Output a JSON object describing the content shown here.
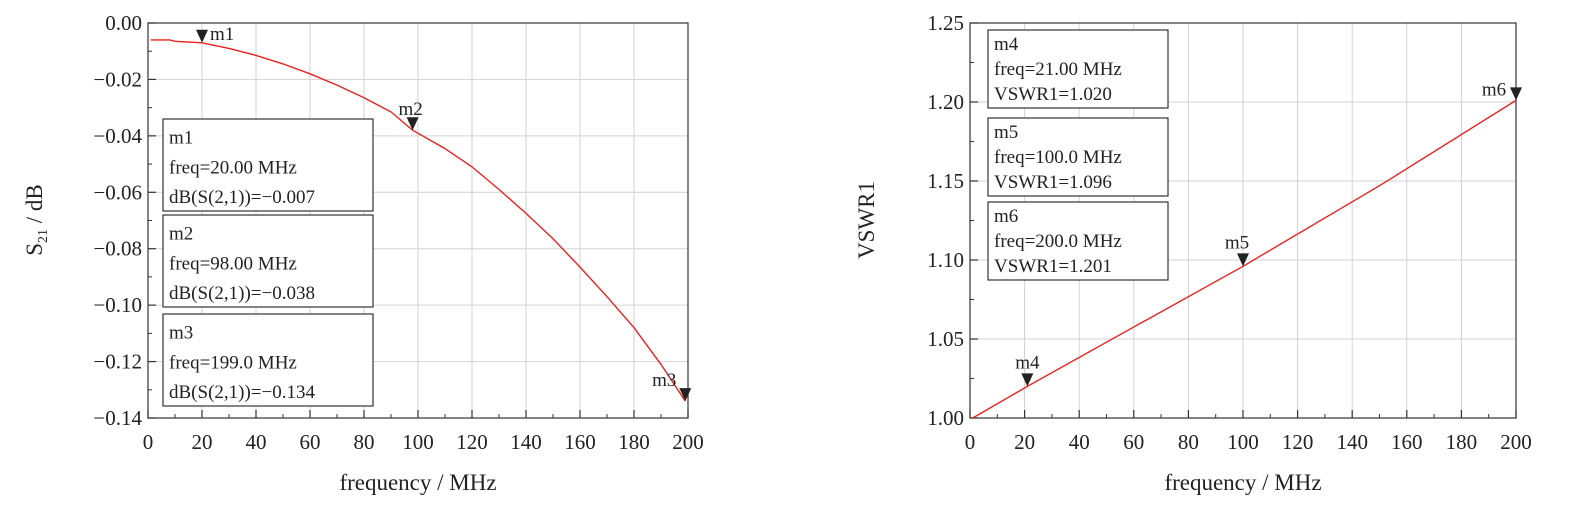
{
  "chart_data": [
    {
      "type": "line",
      "xlabel": "frequency / MHz",
      "ylabel_main": "S",
      "ylabel_sub": "21",
      "ylabel_rest": " / dB",
      "xlim": [
        0,
        200
      ],
      "ylim": [
        -0.14,
        0.0
      ],
      "x_ticks": [
        "0",
        "20",
        "40",
        "60",
        "80",
        "100",
        "120",
        "140",
        "160",
        "180",
        "200"
      ],
      "y_ticks": [
        "0.00",
        "−0.02",
        "−0.04",
        "−0.06",
        "−0.08",
        "−0.10",
        "−0.12",
        "−0.14"
      ],
      "grid": true,
      "line_color": "#e8231f",
      "series": [
        {
          "x": [
            1,
            8,
            10,
            20,
            30,
            40,
            50,
            60,
            70,
            80,
            90,
            98,
            110,
            120,
            130,
            140,
            150,
            160,
            170,
            180,
            190,
            199
          ],
          "values": [
            -0.006,
            -0.006,
            -0.0065,
            -0.007,
            -0.009,
            -0.0115,
            -0.0145,
            -0.018,
            -0.022,
            -0.0265,
            -0.0315,
            -0.038,
            -0.0445,
            -0.051,
            -0.059,
            -0.0675,
            -0.0765,
            -0.0865,
            -0.097,
            -0.108,
            -0.121,
            -0.134
          ]
        }
      ],
      "markers": [
        {
          "name": "m1",
          "x": 20,
          "y": -0.007,
          "freq": "freq=20.00 MHz",
          "value": "dB(S(2,1))=−0.007"
        },
        {
          "name": "m2",
          "x": 98,
          "y": -0.038,
          "freq": "freq=98.00 MHz",
          "value": "dB(S(2,1))=−0.038"
        },
        {
          "name": "m3",
          "x": 199,
          "y": -0.134,
          "freq": "freq=199.0 MHz",
          "value": "dB(S(2,1))=−0.134"
        }
      ]
    },
    {
      "type": "line",
      "xlabel": "frequency / MHz",
      "ylabel_main": "VSWR1",
      "ylabel_sub": "",
      "ylabel_rest": "",
      "xlim": [
        0,
        200
      ],
      "ylim": [
        1.0,
        1.25
      ],
      "x_ticks": [
        "0",
        "20",
        "40",
        "60",
        "80",
        "100",
        "120",
        "140",
        "160",
        "180",
        "200"
      ],
      "y_ticks": [
        "1.25",
        "1.20",
        "1.15",
        "1.10",
        "1.05",
        "1.00"
      ],
      "grid": true,
      "line_color": "#e8231f",
      "series": [
        {
          "x": [
            1,
            21,
            50,
            100,
            150,
            200
          ],
          "values": [
            1.0,
            1.02,
            1.048,
            1.096,
            1.147,
            1.201
          ]
        }
      ],
      "markers": [
        {
          "name": "m4",
          "x": 21,
          "y": 1.02,
          "freq": "freq=21.00 MHz",
          "value": "VSWR1=1.020"
        },
        {
          "name": "m5",
          "x": 100,
          "y": 1.096,
          "freq": "freq=100.0 MHz",
          "value": "VSWR1=1.096"
        },
        {
          "name": "m6",
          "x": 200,
          "y": 1.201,
          "freq": "freq=200.0 MHz",
          "value": "VSWR1=1.201"
        }
      ]
    }
  ]
}
